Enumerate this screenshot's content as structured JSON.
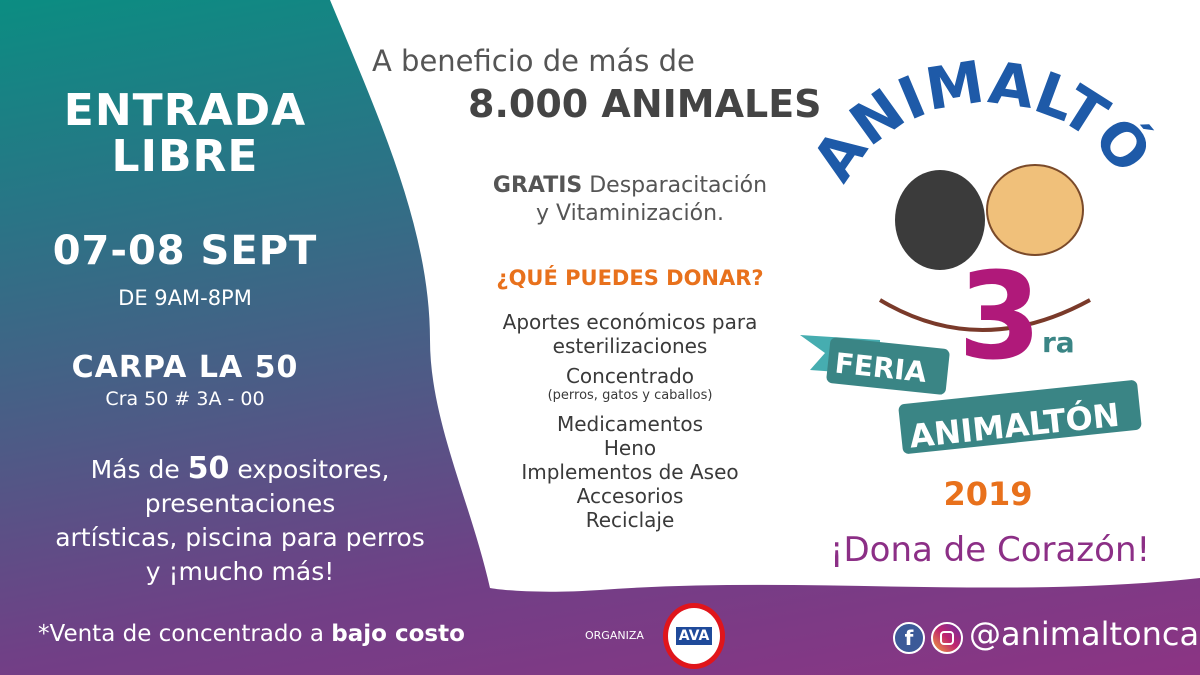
{
  "left": {
    "entrada": [
      "ENTRADA",
      "LIBRE"
    ],
    "dates": "07-08 SEPT",
    "hours": "DE 9AM-8PM",
    "venue": "CARPA LA 50",
    "address": "Cra 50 # 3A - 00",
    "more_lines": [
      "Más de ",
      "50",
      " expositores,",
      "presentaciones",
      "artísticas, piscina para perros",
      "y ¡mucho más!"
    ]
  },
  "middle": {
    "benefit_line1": "A beneficio de más de",
    "benefit_line2": "8.000 ANIMALES",
    "free_bold": "GRATIS",
    "free_rest": " Desparacitación",
    "free_line2": "y Vitaminización.",
    "donate_heading": "¿QUÉ PUEDES DONAR?",
    "donate_items": [
      "Aportes económicos para",
      "esterilizaciones",
      "Concentrado",
      "(perros, gatos y caballos)",
      "Medicamentos",
      "Heno",
      "Implementos de Aseo",
      "Accesorios",
      "Reciclaje"
    ]
  },
  "logo": {
    "title": "ANIMALTÓN",
    "feria": "FERIA",
    "number": "3",
    "suffix": "ra",
    "ribbon": "ANIMALTÓN",
    "year": "2019"
  },
  "slogan": "¡Dona de Corazón!",
  "footer": {
    "sale_text": "*Venta de concentrado a ",
    "sale_bold": "bajo costo",
    "organiza": "ORGANIZA",
    "org_logo": "AVA",
    "social_handle": "@animaltoncali",
    "icons": [
      "facebook-icon",
      "instagram-icon"
    ]
  },
  "colors": {
    "purple": "#8c2f86",
    "orange": "#e8711c",
    "teal": "#3f9d9d",
    "magenta": "#b0197a"
  }
}
